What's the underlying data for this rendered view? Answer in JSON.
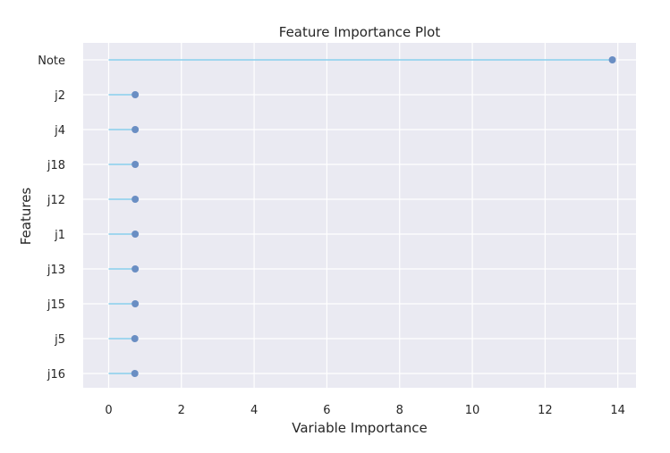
{
  "chart_data": {
    "type": "lollipop",
    "title": "Feature Importance Plot",
    "xlabel": "Variable Importance",
    "ylabel": "Features",
    "xlim": [
      -0.7,
      14.5
    ],
    "xticks": [
      0,
      2,
      4,
      6,
      8,
      10,
      12,
      14
    ],
    "grid": true,
    "categories": [
      "Note",
      "j2",
      "j4",
      "j18",
      "j12",
      "j1",
      "j13",
      "j15",
      "j5",
      "j16"
    ],
    "values": [
      13.85,
      0.73,
      0.73,
      0.73,
      0.73,
      0.73,
      0.73,
      0.73,
      0.72,
      0.72
    ],
    "colors": {
      "background": "#EAEAF2",
      "grid": "#FFFFFF",
      "stem": "#87CEEB",
      "marker": "#6A8EC3"
    }
  }
}
